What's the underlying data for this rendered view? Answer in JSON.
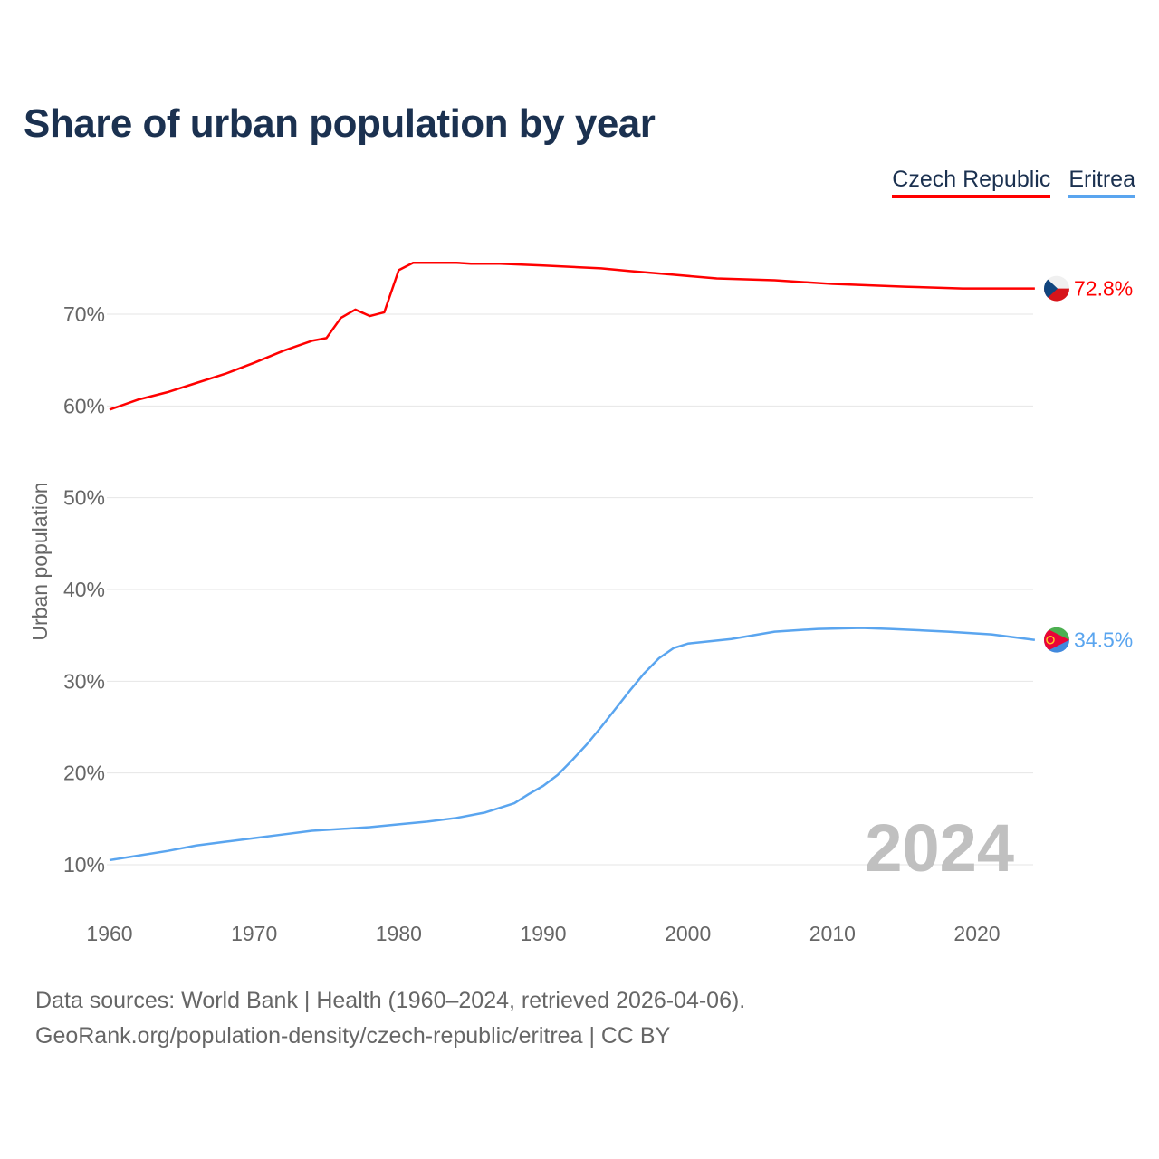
{
  "title": "Share of urban population by year",
  "legend": [
    "Czech Republic",
    "Eritrea"
  ],
  "footer": {
    "line1": "Data sources: World Bank | Health (1960–2024, retrieved 2026-04-06).",
    "line2": "GeoRank.org/population-density/czech-republic/eritrea | CC BY"
  },
  "chart_data": {
    "type": "line",
    "title": "Share of urban population by year",
    "xlabel": "",
    "ylabel": "Urban population",
    "xlim": [
      1960,
      2024
    ],
    "ylim": [
      5,
      78
    ],
    "xticks": [
      1960,
      1970,
      1980,
      1990,
      2000,
      2010,
      2020
    ],
    "xtick_labels": [
      "1960",
      "1970",
      "1980",
      "1990",
      "2000",
      "2010",
      "2020"
    ],
    "yticks": [
      10,
      20,
      30,
      40,
      50,
      60,
      70
    ],
    "ytick_labels": [
      "10%",
      "20%",
      "30%",
      "40%",
      "50%",
      "60%",
      "70%"
    ],
    "grid": true,
    "legend_position": "top-right",
    "year_watermark": "2024",
    "series": [
      {
        "name": "Czech Republic",
        "color": "#ff0000",
        "end_label": "72.8%",
        "x": [
          1960,
          1962,
          1964,
          1966,
          1968,
          1970,
          1972,
          1974,
          1975,
          1976,
          1977,
          1978,
          1979,
          1980,
          1981,
          1984,
          1985,
          1987,
          1990,
          1994,
          1996,
          1999,
          2002,
          2006,
          2010,
          2015,
          2019,
          2023,
          2024
        ],
        "y": [
          59.6,
          60.7,
          61.5,
          62.5,
          63.5,
          64.7,
          66.0,
          67.1,
          67.4,
          69.6,
          70.5,
          69.8,
          70.2,
          74.8,
          75.6,
          75.6,
          75.5,
          75.5,
          75.3,
          75.0,
          74.7,
          74.3,
          73.9,
          73.7,
          73.3,
          73.0,
          72.8,
          72.8,
          72.8
        ]
      },
      {
        "name": "Eritrea",
        "color": "#5aa5ef",
        "end_label": "34.5%",
        "x": [
          1960,
          1962,
          1964,
          1966,
          1968,
          1970,
          1972,
          1974,
          1976,
          1978,
          1980,
          1982,
          1984,
          1986,
          1988,
          1989,
          1990,
          1991,
          1992,
          1993,
          1994,
          1995,
          1996,
          1997,
          1998,
          1999,
          2000,
          2003,
          2006,
          2009,
          2012,
          2014,
          2018,
          2021,
          2024
        ],
        "y": [
          10.5,
          11.0,
          11.5,
          12.1,
          12.5,
          12.9,
          13.3,
          13.7,
          13.9,
          14.1,
          14.4,
          14.7,
          15.1,
          15.7,
          16.7,
          17.7,
          18.6,
          19.8,
          21.4,
          23.1,
          25.0,
          27.0,
          29.0,
          30.9,
          32.5,
          33.6,
          34.1,
          34.6,
          35.4,
          35.7,
          35.8,
          35.7,
          35.4,
          35.1,
          34.5
        ]
      }
    ]
  }
}
